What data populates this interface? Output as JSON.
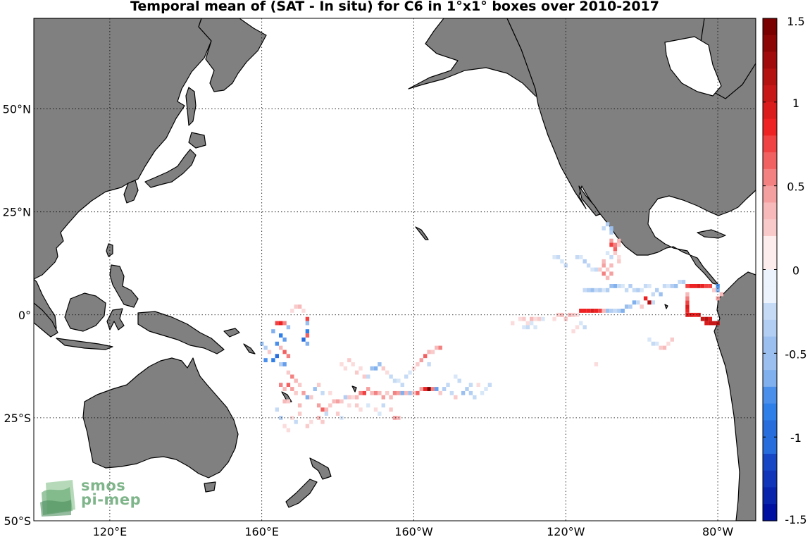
{
  "title": "Temporal mean of (SAT - In situ) for C6 in 1°x1° boxes over 2010-2017",
  "map": {
    "lon_range": [
      100,
      290
    ],
    "lat_range": [
      -50,
      72
    ],
    "lat_ticks": [
      {
        "value": 50,
        "label": "50°N"
      },
      {
        "value": 25,
        "label": "25°N"
      },
      {
        "value": 0,
        "label": "0°"
      },
      {
        "value": -25,
        "label": "25°S"
      },
      {
        "value": -50,
        "label": "50°S"
      }
    ],
    "lon_ticks": [
      {
        "value": 120,
        "label": "120°E"
      },
      {
        "value": 160,
        "label": "160°E"
      },
      {
        "value": 200,
        "label": "160°W"
      },
      {
        "value": 240,
        "label": "120°W"
      },
      {
        "value": 280,
        "label": "80°W"
      }
    ],
    "land_color": "#808080",
    "ocean_color": "#ffffff",
    "grid_style": "dotted"
  },
  "colorbar": {
    "min": -1.5,
    "max": 1.5,
    "levels": 30,
    "ticks": [
      {
        "value": 1.5,
        "label": "1.5"
      },
      {
        "value": 1,
        "label": "1"
      },
      {
        "value": 0.5,
        "label": "0.5"
      },
      {
        "value": 0,
        "label": "0"
      },
      {
        "value": -0.5,
        "label": "-0.5"
      },
      {
        "value": -1,
        "label": "-1"
      },
      {
        "value": -1.5,
        "label": "-1.5"
      }
    ],
    "neg_color": "#0010a0",
    "pos_color": "#7a0000"
  },
  "logo": {
    "line1": "smos",
    "line2": "pi-mep"
  },
  "cells": [
    [
      165,
      -2,
      0.9
    ],
    [
      164,
      -2,
      0.8
    ],
    [
      166,
      -2,
      0.6
    ],
    [
      167,
      -3,
      -0.5
    ],
    [
      163,
      -4,
      -0.6
    ],
    [
      165,
      -5,
      -0.9
    ],
    [
      166,
      -6,
      -0.7
    ],
    [
      164,
      -7,
      -0.8
    ],
    [
      165,
      -8,
      0.4
    ],
    [
      166,
      -9,
      0.7
    ],
    [
      167,
      -10,
      0.6
    ],
    [
      164,
      -10,
      -1.0
    ],
    [
      163,
      -11,
      -0.9
    ],
    [
      165,
      -12,
      -0.4
    ],
    [
      166,
      -12,
      -0.7
    ],
    [
      160,
      -7,
      -0.5
    ],
    [
      161,
      -8,
      -0.4
    ],
    [
      162,
      -9,
      0.3
    ],
    [
      161,
      -11,
      -0.8
    ],
    [
      172,
      -1,
      0.8
    ],
    [
      172,
      -2,
      -0.5
    ],
    [
      172,
      -4,
      -0.9
    ],
    [
      172,
      -5,
      0.7
    ],
    [
      171,
      -6,
      -1.0
    ],
    [
      172,
      -7,
      -0.6
    ],
    [
      171,
      1,
      0.2
    ],
    [
      169,
      2,
      0.3
    ],
    [
      170,
      2,
      0.4
    ],
    [
      168,
      1,
      0.2
    ],
    [
      167,
      -14,
      0.3
    ],
    [
      168,
      -15,
      0.6
    ],
    [
      169,
      -16,
      0.4
    ],
    [
      170,
      -17,
      0.3
    ],
    [
      167,
      -17,
      0.7
    ],
    [
      168,
      -18,
      0.5
    ],
    [
      165,
      -17,
      0.6
    ],
    [
      166,
      -18,
      0.4
    ],
    [
      169,
      -19,
      0.3
    ],
    [
      171,
      -19,
      0.5
    ],
    [
      172,
      -20,
      -0.6
    ],
    [
      173,
      -20,
      0.3
    ],
    [
      166,
      -21,
      0.4
    ],
    [
      167,
      -21,
      0.3
    ],
    [
      170,
      -22,
      0.4
    ],
    [
      175,
      -22,
      0.5
    ],
    [
      176,
      -23,
      0.7
    ],
    [
      177,
      -23,
      0.4
    ],
    [
      178,
      -22,
      0.3
    ],
    [
      179,
      -21,
      0.4
    ],
    [
      180,
      -21,
      0.5
    ],
    [
      181,
      -21,
      0.3
    ],
    [
      182,
      -20,
      -0.4
    ],
    [
      183,
      -20,
      0.3
    ],
    [
      184,
      -20,
      0.2
    ],
    [
      185,
      -20,
      0.4
    ],
    [
      186,
      -19,
      0.6
    ],
    [
      187,
      -19,
      0.8
    ],
    [
      188,
      -18,
      0.5
    ],
    [
      189,
      -19,
      0.4
    ],
    [
      190,
      -19,
      0.6
    ],
    [
      191,
      -19,
      0.4
    ],
    [
      192,
      -20,
      0.5
    ],
    [
      193,
      -19,
      0.3
    ],
    [
      194,
      -20,
      0.4
    ],
    [
      195,
      -19,
      0.6
    ],
    [
      196,
      -19,
      0.5
    ],
    [
      197,
      -19,
      -0.6
    ],
    [
      198,
      -19,
      0.4
    ],
    [
      199,
      -19,
      -0.5
    ],
    [
      200,
      -19,
      0.3
    ],
    [
      201,
      -19,
      0.7
    ],
    [
      202,
      -18,
      0.5
    ],
    [
      203,
      -18,
      0.9
    ],
    [
      204,
      -18,
      1.5
    ],
    [
      205,
      -18,
      0.6
    ],
    [
      206,
      -18,
      -0.7
    ],
    [
      207,
      -19,
      0.3
    ],
    [
      174,
      -18,
      -0.5
    ],
    [
      175,
      -17,
      0.3
    ],
    [
      176,
      -19,
      -0.3
    ],
    [
      178,
      -19,
      0.2
    ],
    [
      181,
      -12,
      0.2
    ],
    [
      182,
      -13,
      0.2
    ],
    [
      183,
      -11,
      0.3
    ],
    [
      184,
      -12,
      0.2
    ],
    [
      185,
      -14,
      0.3
    ],
    [
      186,
      -13,
      0.2
    ],
    [
      187,
      -15,
      0.3
    ],
    [
      188,
      -15,
      -0.3
    ],
    [
      189,
      -13,
      -0.5
    ],
    [
      190,
      -13,
      -0.6
    ],
    [
      191,
      -12,
      -0.5
    ],
    [
      192,
      -13,
      0.3
    ],
    [
      193,
      -14,
      0.2
    ],
    [
      194,
      -15,
      -0.3
    ],
    [
      195,
      -16,
      -0.3
    ],
    [
      196,
      -16,
      -0.2
    ],
    [
      197,
      -17,
      -0.3
    ],
    [
      201,
      -12,
      0.3
    ],
    [
      202,
      -11,
      0.5
    ],
    [
      203,
      -10,
      0.7
    ],
    [
      204,
      -9,
      0.4
    ],
    [
      205,
      -9,
      0.3
    ],
    [
      206,
      -8,
      0.4
    ],
    [
      207,
      -8,
      0.6
    ],
    [
      200,
      -13,
      0.2
    ],
    [
      199,
      -14,
      -0.2
    ],
    [
      198,
      -15,
      -0.3
    ],
    [
      204,
      -12,
      -0.3
    ],
    [
      208,
      -18,
      -0.4
    ],
    [
      209,
      -17,
      -0.3
    ],
    [
      210,
      -19,
      -0.3
    ],
    [
      211,
      -20,
      0.3
    ],
    [
      213,
      -19,
      -0.5
    ],
    [
      214,
      -18,
      -0.4
    ],
    [
      215,
      -17,
      -0.3
    ],
    [
      218,
      -19,
      -0.2
    ],
    [
      217,
      -17,
      0.2
    ],
    [
      175,
      -25,
      0.4
    ],
    [
      176,
      -26,
      0.3
    ],
    [
      170,
      -24,
      0.3
    ],
    [
      168,
      -25,
      0.2
    ],
    [
      169,
      -26,
      -0.3
    ],
    [
      177,
      -24,
      -0.3
    ],
    [
      173,
      -26,
      0.2
    ],
    [
      172,
      -27,
      0.3
    ],
    [
      164,
      -23,
      -0.3
    ],
    [
      165,
      -25,
      -0.4
    ],
    [
      166,
      -27,
      0.2
    ],
    [
      167,
      -28,
      0.2
    ],
    [
      180,
      -24,
      0.3
    ],
    [
      181,
      -25,
      -0.2
    ],
    [
      183,
      -22,
      0.2
    ],
    [
      185,
      -22,
      0.3
    ],
    [
      186,
      -23,
      0.2
    ],
    [
      188,
      -22,
      -0.2
    ],
    [
      192,
      -22,
      -0.3
    ],
    [
      194,
      -23,
      0.3
    ],
    [
      195,
      -25,
      0.5
    ],
    [
      196,
      -25,
      0.4
    ],
    [
      190,
      -23,
      0.2
    ],
    [
      191,
      -24,
      -0.2
    ],
    [
      211,
      -15,
      -0.2
    ],
    [
      212,
      -16,
      -0.3
    ],
    [
      215,
      -19,
      -0.4
    ],
    [
      216,
      -20,
      -0.3
    ],
    [
      219,
      -18,
      -0.2
    ],
    [
      220,
      -17,
      -0.3
    ],
    [
      228,
      -1,
      0.2
    ],
    [
      229,
      -1,
      0.3
    ],
    [
      230,
      -2,
      0.2
    ],
    [
      231,
      -1,
      0.4
    ],
    [
      232,
      -1,
      0.2
    ],
    [
      233,
      -1,
      0.3
    ],
    [
      234,
      -1,
      -0.2
    ],
    [
      238,
      0,
      0.3
    ],
    [
      239,
      0,
      0.4
    ],
    [
      240,
      -1,
      0.3
    ],
    [
      241,
      0,
      0.4
    ],
    [
      242,
      0,
      0.3
    ],
    [
      243,
      0,
      0.2
    ],
    [
      237,
      -1,
      0.2
    ],
    [
      244,
      1,
      0.9
    ],
    [
      245,
      1,
      0.9
    ],
    [
      246,
      1,
      0.9
    ],
    [
      247,
      1,
      1.0
    ],
    [
      248,
      1,
      0.9
    ],
    [
      249,
      1,
      0.8
    ],
    [
      250,
      1,
      0.4
    ],
    [
      251,
      1,
      -0.5
    ],
    [
      252,
      1,
      -0.4
    ],
    [
      253,
      1,
      -0.3
    ],
    [
      254,
      1,
      -0.4
    ],
    [
      255,
      1,
      -0.6
    ],
    [
      256,
      2,
      -0.5
    ],
    [
      257,
      2,
      -0.4
    ],
    [
      258,
      3,
      -0.6
    ],
    [
      259,
      3,
      -0.3
    ],
    [
      260,
      2,
      0.3
    ],
    [
      261,
      4,
      0.9
    ],
    [
      262,
      3,
      1.2
    ],
    [
      263,
      3,
      -0.3
    ],
    [
      245,
      6,
      -0.3
    ],
    [
      246,
      6,
      -0.4
    ],
    [
      247,
      6,
      -0.5
    ],
    [
      248,
      6,
      -0.3
    ],
    [
      249,
      6,
      -0.4
    ],
    [
      250,
      6,
      -0.2
    ],
    [
      251,
      6,
      -0.4
    ],
    [
      252,
      7,
      -0.5
    ],
    [
      253,
      7,
      -0.6
    ],
    [
      254,
      7,
      -0.3
    ],
    [
      255,
      7,
      -0.2
    ],
    [
      256,
      6,
      -0.3
    ],
    [
      257,
      7,
      -0.4
    ],
    [
      258,
      6,
      -0.3
    ],
    [
      259,
      6,
      -0.4
    ],
    [
      260,
      6,
      -0.2
    ],
    [
      261,
      7,
      -0.3
    ],
    [
      262,
      7,
      -0.2
    ],
    [
      263,
      5,
      -0.3
    ],
    [
      264,
      6,
      -0.4
    ],
    [
      265,
      5,
      -0.5
    ],
    [
      266,
      7,
      -0.3
    ],
    [
      267,
      7,
      -0.2
    ],
    [
      268,
      7,
      -0.4
    ],
    [
      269,
      7,
      -0.5
    ],
    [
      270,
      8,
      -0.3
    ],
    [
      271,
      8,
      -0.4
    ],
    [
      272,
      7,
      0.8
    ],
    [
      273,
      7,
      0.9
    ],
    [
      274,
      7,
      0.9
    ],
    [
      275,
      7,
      1.0
    ],
    [
      276,
      7,
      0.9
    ],
    [
      277,
      7,
      0.8
    ],
    [
      278,
      7,
      0.8
    ],
    [
      279,
      6,
      0.3
    ],
    [
      280,
      7,
      -0.8
    ],
    [
      280,
      6,
      -0.6
    ],
    [
      281,
      5,
      0.4
    ],
    [
      280,
      4,
      0.5
    ],
    [
      272,
      0,
      1.0
    ],
    [
      273,
      0,
      1.0
    ],
    [
      274,
      0,
      0.9
    ],
    [
      275,
      0,
      1.0
    ],
    [
      276,
      -1,
      1.1
    ],
    [
      277,
      -1,
      1.2
    ],
    [
      278,
      -1,
      1.0
    ],
    [
      279,
      -2,
      1.1
    ],
    [
      280,
      -2,
      1.2
    ],
    [
      278,
      -2,
      1.1
    ],
    [
      277,
      -2,
      1.0
    ],
    [
      272,
      1,
      0.9
    ],
    [
      272,
      2,
      1.0
    ],
    [
      272,
      3,
      0.8
    ],
    [
      272,
      4,
      0.6
    ],
    [
      272,
      5,
      0.4
    ],
    [
      250,
      13,
      0.4
    ],
    [
      250,
      12,
      0.5
    ],
    [
      251,
      11,
      0.3
    ],
    [
      250,
      10,
      0.6
    ],
    [
      251,
      9,
      0.4
    ],
    [
      249,
      11,
      0.3
    ],
    [
      252,
      10,
      0.5
    ],
    [
      252,
      12,
      0.4
    ],
    [
      253,
      15,
      0.3
    ],
    [
      254,
      14,
      0.2
    ],
    [
      254,
      13,
      0.3
    ],
    [
      252,
      14,
      -0.3
    ],
    [
      251,
      15,
      -0.2
    ],
    [
      252,
      17,
      0.8
    ],
    [
      253,
      17,
      0.6
    ],
    [
      253,
      16,
      0.7
    ],
    [
      252,
      18,
      0.5
    ],
    [
      254,
      17,
      0.3
    ],
    [
      254,
      18,
      0.4
    ],
    [
      252,
      20,
      -0.4
    ],
    [
      252,
      21,
      -0.5
    ],
    [
      251,
      22,
      -0.4
    ],
    [
      250,
      21,
      -0.3
    ],
    [
      243,
      14,
      -0.3
    ],
    [
      244,
      14,
      -0.2
    ],
    [
      245,
      13,
      -0.4
    ],
    [
      246,
      12,
      -0.3
    ],
    [
      247,
      11,
      -0.2
    ],
    [
      248,
      11,
      -0.3
    ],
    [
      237,
      14,
      -0.2
    ],
    [
      238,
      14,
      -0.3
    ],
    [
      239,
      13,
      -0.2
    ],
    [
      240,
      12,
      -0.3
    ],
    [
      244,
      -2,
      -0.2
    ],
    [
      245,
      -3,
      -0.3
    ],
    [
      242,
      -4,
      0.2
    ],
    [
      243,
      -3,
      0.2
    ],
    [
      262,
      -6,
      -0.2
    ],
    [
      263,
      -7,
      -0.3
    ],
    [
      264,
      -7,
      -0.2
    ],
    [
      265,
      -8,
      0.3
    ],
    [
      266,
      -8,
      0.4
    ],
    [
      267,
      -7,
      0.2
    ],
    [
      268,
      -6,
      0.3
    ],
    [
      248,
      -12,
      0.2
    ],
    [
      229,
      -3,
      -0.2
    ],
    [
      230,
      -3,
      -0.3
    ],
    [
      231,
      -2,
      -0.2
    ],
    [
      232,
      -3,
      -0.2
    ],
    [
      226,
      -2,
      0.2
    ]
  ]
}
